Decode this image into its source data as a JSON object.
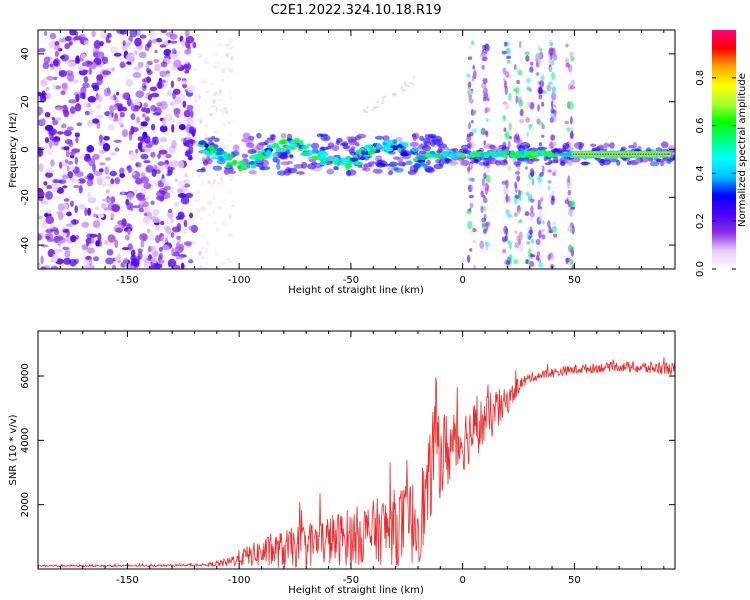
{
  "figure": {
    "title": "C2E1.2022.324.10.18.R19"
  },
  "chart_data": [
    {
      "type": "heatmap",
      "xlabel": "Height of straight line (km)",
      "ylabel": "Frequency (Hz)",
      "xlim": [
        -190,
        95
      ],
      "ylim": [
        -50,
        50
      ],
      "x_ticks": [
        -150,
        -100,
        -50,
        0,
        50
      ],
      "y_ticks": [
        -40,
        -20,
        0,
        20,
        40
      ],
      "colorbar": {
        "label": "Normalized spectral amplitude",
        "range": [
          0,
          1
        ],
        "ticks": [
          0.0,
          0.2,
          0.4,
          0.6,
          0.8
        ],
        "colormap": [
          "#ffffff",
          "#e9c8ff",
          "#8a2be2",
          "#4b00ff",
          "#0000ff",
          "#00bfff",
          "#00ffff",
          "#00ff7f",
          "#00ff00",
          "#adff2f",
          "#ffff00",
          "#ffa500",
          "#ff0000",
          "#ff0080"
        ]
      },
      "regions": [
        {
          "name": "noise",
          "x": [
            -190,
            -120
          ],
          "freq": [
            -50,
            50
          ],
          "amplitude": 0.2
        },
        {
          "name": "sparse",
          "x": [
            -120,
            -103
          ],
          "freq": [
            -50,
            50
          ],
          "amplitude": 0.05
        },
        {
          "name": "signal-band",
          "x": [
            -117,
            95
          ],
          "freq_center": -2,
          "amplitude": 0.55
        },
        {
          "name": "faint-streak",
          "x": [
            -45,
            -20
          ],
          "freq": [
            15,
            30
          ],
          "amplitude": 0.1
        },
        {
          "name": "vertical-stripes",
          "x": [
            0,
            50
          ],
          "freq": [
            -50,
            45
          ],
          "amplitude": 0.2
        }
      ]
    },
    {
      "type": "line",
      "xlabel": "Height of straight line (km)",
      "ylabel": "SNR (10 * v/v)",
      "xlim": [
        -190,
        95
      ],
      "ylim": [
        0,
        7400
      ],
      "x_ticks": [
        -150,
        -100,
        -50,
        0,
        50
      ],
      "y_ticks": [
        2000,
        4000,
        6000
      ],
      "series": [
        {
          "color": "#ee2b2b",
          "x": [
            -190,
            -170,
            -150,
            -130,
            -115,
            -105,
            -100,
            -90,
            -80,
            -70,
            -60,
            -50,
            -40,
            -30,
            -20,
            -15,
            -12,
            -10,
            -5,
            0,
            5,
            10,
            15,
            20,
            25,
            30,
            40,
            50,
            60,
            70,
            80,
            90,
            95
          ],
          "y": [
            100,
            100,
            100,
            110,
            130,
            200,
            350,
            500,
            600,
            750,
            900,
            1000,
            1150,
            1300,
            1500,
            2500,
            4500,
            3500,
            3800,
            4000,
            4300,
            4600,
            4900,
            5200,
            5700,
            5950,
            6100,
            6200,
            6250,
            6300,
            6250,
            6250,
            6200
          ],
          "noise_amplitude": [
            30,
            30,
            30,
            30,
            40,
            150,
            250,
            450,
            600,
            700,
            800,
            900,
            1000,
            1200,
            1400,
            1500,
            1500,
            1400,
            1200,
            1000,
            900,
            800,
            700,
            400,
            250,
            150,
            150,
            150,
            150,
            150,
            200,
            200,
            200
          ]
        }
      ]
    }
  ]
}
